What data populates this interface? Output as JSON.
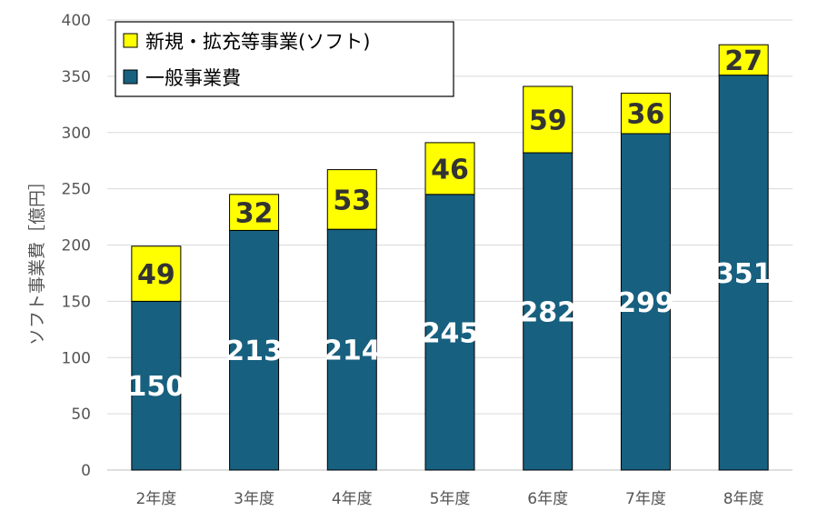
{
  "chart_data": {
    "type": "bar",
    "stacked": true,
    "title": "",
    "xlabel": "",
    "ylabel": "ソフト事業費［億円］",
    "ylim": [
      0,
      400
    ],
    "yticks": [
      0,
      50,
      100,
      150,
      200,
      250,
      300,
      350,
      400
    ],
    "grid": true,
    "legend_position": "top-left",
    "categories": [
      "2年度",
      "3年度",
      "4年度",
      "5年度",
      "6年度",
      "7年度",
      "8年度"
    ],
    "series": [
      {
        "name": "一般事業費",
        "values": [
          150,
          213,
          214,
          245,
          282,
          299,
          351
        ],
        "color": "#17607f"
      },
      {
        "name": "新規・拡充等事業(ソフト)",
        "values": [
          49,
          32,
          53,
          46,
          59,
          36,
          27
        ],
        "color": "#ffff00"
      }
    ],
    "legend": [
      "新規・拡充等事業(ソフト)",
      "一般事業費"
    ]
  }
}
